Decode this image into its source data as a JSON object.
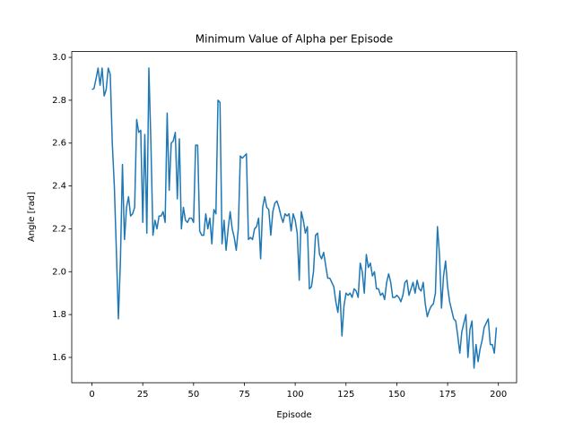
{
  "chart_data": {
    "type": "line",
    "title": "Minimum Value of Alpha per Episode",
    "x_label": "Episode",
    "y_label": "Angle [rad]",
    "color": "#1f77b4",
    "x": [
      0,
      1,
      2,
      3,
      4,
      5,
      6,
      7,
      8,
      9,
      10,
      11,
      12,
      13,
      14,
      15,
      16,
      17,
      18,
      19,
      20,
      21,
      22,
      23,
      24,
      25,
      26,
      27,
      28,
      29,
      30,
      31,
      32,
      33,
      34,
      35,
      36,
      37,
      38,
      39,
      40,
      41,
      42,
      43,
      44,
      45,
      46,
      47,
      48,
      49,
      50,
      51,
      52,
      53,
      54,
      55,
      56,
      57,
      58,
      59,
      60,
      61,
      62,
      63,
      64,
      65,
      66,
      67,
      68,
      69,
      70,
      71,
      72,
      73,
      74,
      75,
      76,
      77,
      78,
      79,
      80,
      81,
      82,
      83,
      84,
      85,
      86,
      87,
      88,
      89,
      90,
      91,
      92,
      93,
      94,
      95,
      96,
      97,
      98,
      99,
      100,
      101,
      102,
      103,
      104,
      105,
      106,
      107,
      108,
      109,
      110,
      111,
      112,
      113,
      114,
      115,
      116,
      117,
      118,
      119,
      120,
      121,
      122,
      123,
      124,
      125,
      126,
      127,
      128,
      129,
      130,
      131,
      132,
      133,
      134,
      135,
      136,
      137,
      138,
      139,
      140,
      141,
      142,
      143,
      144,
      145,
      146,
      147,
      148,
      149,
      150,
      151,
      152,
      153,
      154,
      155,
      156,
      157,
      158,
      159,
      160,
      161,
      162,
      163,
      164,
      165,
      166,
      167,
      168,
      169,
      170,
      171,
      172,
      173,
      174,
      175,
      176,
      177,
      178,
      179,
      180,
      181,
      182,
      183,
      184,
      185,
      186,
      187,
      188,
      189,
      190,
      191,
      192,
      193,
      194,
      195,
      196,
      197,
      198,
      199
    ],
    "values": [
      2.85,
      2.855,
      2.9,
      2.95,
      2.87,
      2.95,
      2.82,
      2.85,
      2.95,
      2.92,
      2.6,
      2.4,
      2.1,
      1.78,
      2.05,
      2.5,
      2.15,
      2.3,
      2.35,
      2.26,
      2.27,
      2.3,
      2.71,
      2.65,
      2.66,
      2.23,
      2.64,
      2.18,
      2.95,
      2.6,
      2.17,
      2.24,
      2.2,
      2.26,
      2.26,
      2.28,
      2.23,
      2.74,
      2.38,
      2.6,
      2.61,
      2.65,
      2.34,
      2.62,
      2.2,
      2.3,
      2.24,
      2.23,
      2.25,
      2.25,
      2.23,
      2.59,
      2.59,
      2.19,
      2.17,
      2.17,
      2.27,
      2.2,
      2.25,
      2.13,
      2.29,
      2.27,
      2.8,
      2.79,
      2.13,
      2.24,
      2.1,
      2.2,
      2.28,
      2.2,
      2.16,
      2.1,
      2.2,
      2.54,
      2.53,
      2.54,
      2.55,
      2.15,
      2.16,
      2.15,
      2.2,
      2.21,
      2.25,
      2.06,
      2.3,
      2.35,
      2.3,
      2.29,
      2.17,
      2.28,
      2.32,
      2.33,
      2.3,
      2.26,
      2.23,
      2.27,
      2.26,
      2.27,
      2.19,
      2.27,
      2.24,
      2.18,
      1.96,
      2.28,
      2.24,
      2.18,
      2.21,
      1.92,
      1.93,
      2.0,
      2.17,
      2.18,
      2.08,
      2.06,
      2.09,
      2.03,
      1.97,
      1.97,
      1.95,
      1.93,
      1.86,
      1.81,
      1.91,
      1.7,
      1.84,
      1.9,
      1.89,
      1.9,
      1.88,
      1.92,
      1.91,
      1.88,
      2.04,
      2.0,
      1.9,
      2.08,
      2.02,
      2.04,
      1.98,
      2.0,
      1.92,
      1.92,
      1.89,
      1.9,
      1.87,
      1.95,
      1.99,
      1.95,
      1.88,
      1.88,
      1.89,
      1.88,
      1.86,
      1.89,
      1.95,
      1.96,
      1.89,
      1.92,
      1.95,
      1.9,
      1.96,
      1.92,
      1.91,
      1.95,
      1.85,
      1.79,
      1.82,
      1.84,
      1.85,
      1.9,
      2.21,
      2.08,
      1.83,
      1.98,
      2.05,
      1.93,
      1.86,
      1.82,
      1.78,
      1.77,
      1.7,
      1.62,
      1.72,
      1.76,
      1.8,
      1.6,
      1.73,
      1.77,
      1.55,
      1.66,
      1.58,
      1.64,
      1.68,
      1.74,
      1.76,
      1.78,
      1.66,
      1.66,
      1.62,
      1.74
    ],
    "xlim": [
      -9.95,
      208.95
    ],
    "ylim": [
      1.482,
      3.027
    ],
    "xticks": [
      0,
      25,
      50,
      75,
      100,
      125,
      150,
      175,
      200
    ],
    "yticks": [
      1.6,
      1.8,
      {
        "value": 2.0,
        "label": "2.0"
      },
      2.2,
      2.4,
      2.6,
      2.8,
      {
        "value": 3.0,
        "label": "3.0"
      }
    ]
  }
}
